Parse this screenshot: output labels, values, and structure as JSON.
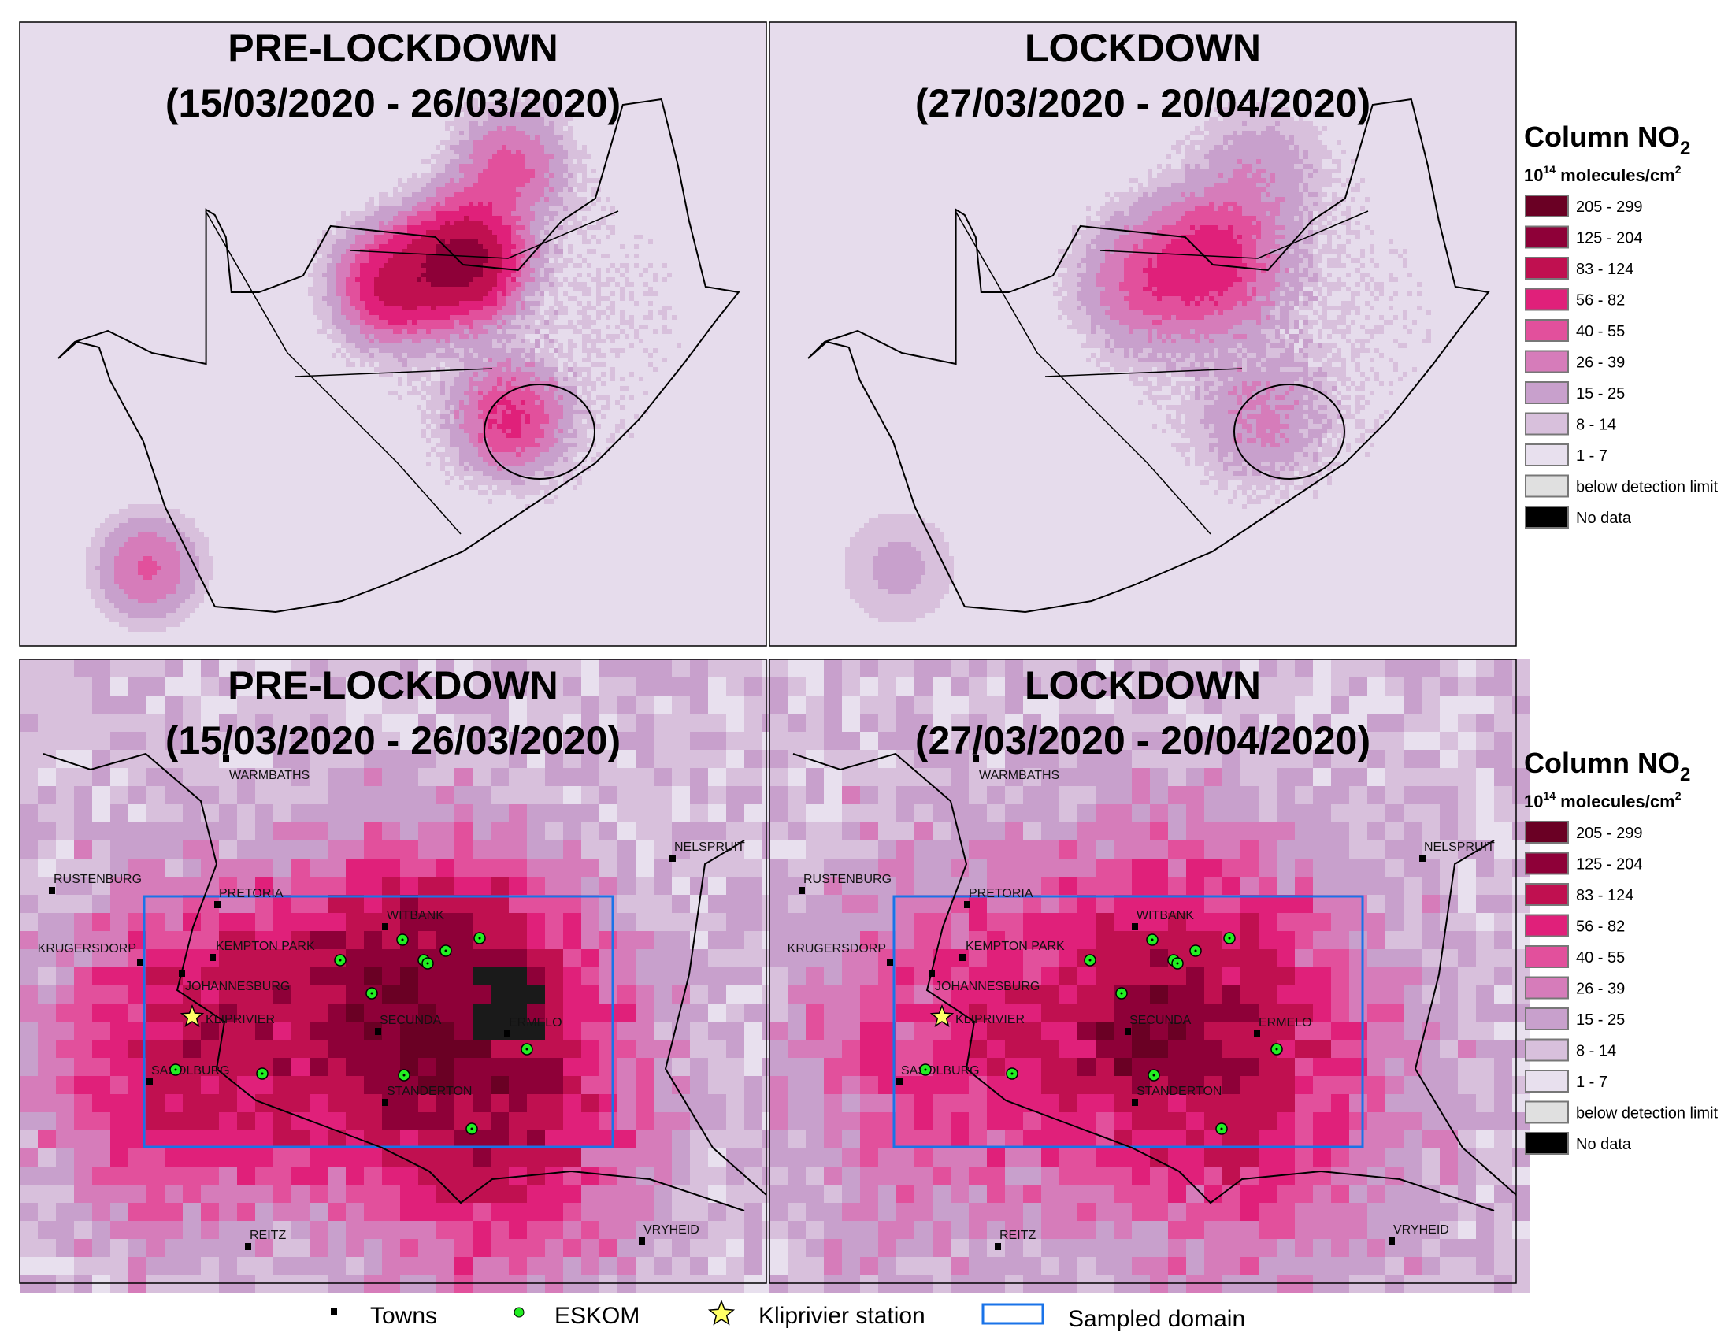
{
  "panels": [
    {
      "title_line1": "PRE-LOCKDOWN",
      "title_line2": "(15/03/2020 - 26/03/2020)",
      "extent": "national",
      "period": "pre"
    },
    {
      "title_line1": "LOCKDOWN",
      "title_line2": "(27/03/2020 - 20/04/2020)",
      "extent": "national",
      "period": "lockdown"
    },
    {
      "title_line1": "PRE-LOCKDOWN",
      "title_line2": "(15/03/2020 - 26/03/2020)",
      "extent": "highveld",
      "period": "pre"
    },
    {
      "title_line1": "LOCKDOWN",
      "title_line2": "(27/03/2020 - 20/04/2020)",
      "extent": "highveld",
      "period": "lockdown"
    }
  ],
  "towns": [
    "WARMBATHS",
    "RUSTENBURG",
    "PRETORIA",
    "KRUGERSDORP",
    "KEMPTON PARK",
    "JOHANNESBURG",
    "WITBANK",
    "SECUNDA",
    "ERMELO",
    "SASOLBURG",
    "STANDERTON",
    "NELSPRUIT",
    "REITZ",
    "VRYHEID"
  ],
  "station": "KLIPRIVIER",
  "legend": {
    "title": "Column NO",
    "title_sub": "2",
    "unit_base": "10",
    "unit_exp": "14",
    "unit_text": " molecules/cm",
    "unit_sq": "2",
    "classes": [
      {
        "label": "205 - 299",
        "color": "#6a0024"
      },
      {
        "label": "125 - 204",
        "color": "#8e0038"
      },
      {
        "label": "83 - 124",
        "color": "#c01050"
      },
      {
        "label": "56 - 82",
        "color": "#e0207a"
      },
      {
        "label": "40 - 55",
        "color": "#e2509c"
      },
      {
        "label": "26 - 39",
        "color": "#d67cba"
      },
      {
        "label": "15 - 25",
        "color": "#c8a0cc"
      },
      {
        "label": "8 - 14",
        "color": "#d8c0dc"
      },
      {
        "label": "1 - 7",
        "color": "#e8e0ee"
      },
      {
        "label": "below detection limit",
        "color": "#e0e0e0"
      },
      {
        "label": "No data",
        "color": "#000000"
      }
    ]
  },
  "bottom_legend": {
    "towns": "Towns",
    "eskom": "ESKOM",
    "station": "Kliprivier station",
    "domain": "Sampled domain"
  },
  "colors": {
    "eskom": "#22ee22",
    "domain_box": "#1a73e8",
    "star": "#ffff66"
  }
}
